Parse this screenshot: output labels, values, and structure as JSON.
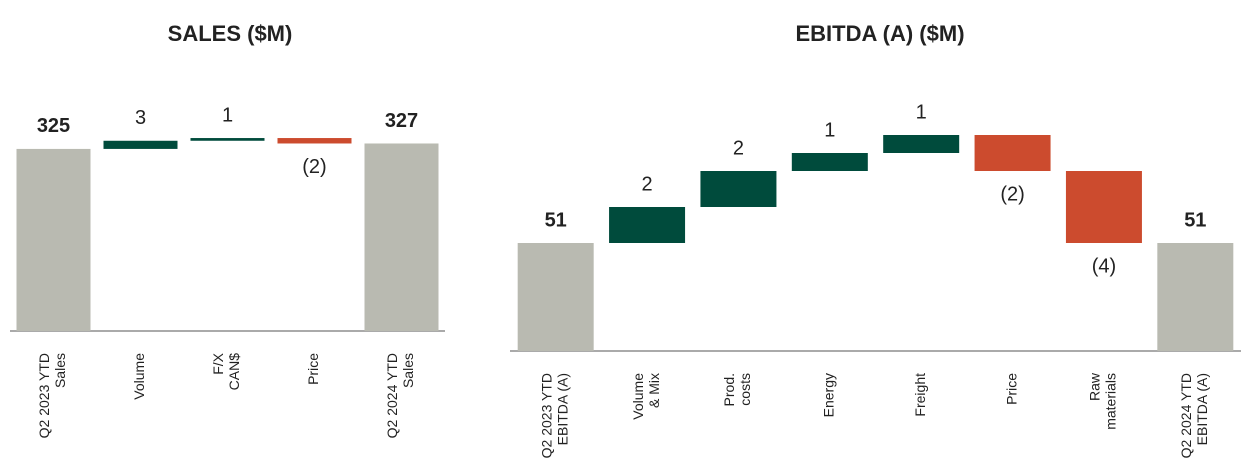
{
  "chart_data": [
    {
      "type": "waterfall",
      "title": "SALES ($M)",
      "categories": [
        [
          "Q2 2023 YTD",
          "Sales"
        ],
        [
          "Volume"
        ],
        [
          "F/X",
          "CAN$"
        ],
        [
          "Price"
        ],
        [
          "Q2 2024 YTD",
          "Sales"
        ]
      ],
      "values": [
        325,
        3,
        1,
        -2,
        327
      ],
      "value_labels": [
        "325",
        "3",
        "1",
        "(2)",
        "327"
      ],
      "measure": [
        "absolute",
        "relative",
        "relative",
        "relative",
        "absolute"
      ],
      "colors": {
        "absolute": "#b9bab1",
        "increase": "#004b3c",
        "decrease": "#cc4b2e"
      },
      "ylim": [
        258,
        343
      ]
    },
    {
      "type": "waterfall",
      "title": "EBITDA (A) ($M)",
      "categories": [
        [
          "Q2 2023 YTD",
          "EBITDA (A)"
        ],
        [
          "Volume",
          "& Mix"
        ],
        [
          "Prod.",
          "costs"
        ],
        [
          "Energy"
        ],
        [
          "Freight"
        ],
        [
          "Price"
        ],
        [
          "Raw",
          "materials"
        ],
        [
          "Q2 2024 YTD",
          "EBITDA (A)"
        ]
      ],
      "values": [
        51,
        2,
        2,
        1,
        1,
        -2,
        -4,
        51
      ],
      "value_labels": [
        "51",
        "2",
        "2",
        "1",
        "1",
        "(2)",
        "(4)",
        "51"
      ],
      "measure": [
        "absolute",
        "relative",
        "relative",
        "relative",
        "relative",
        "relative",
        "relative",
        "absolute"
      ],
      "colors": {
        "absolute": "#b9bab1",
        "increase": "#004b3c",
        "decrease": "#cc4b2e"
      },
      "ylim": [
        45,
        58
      ]
    }
  ]
}
